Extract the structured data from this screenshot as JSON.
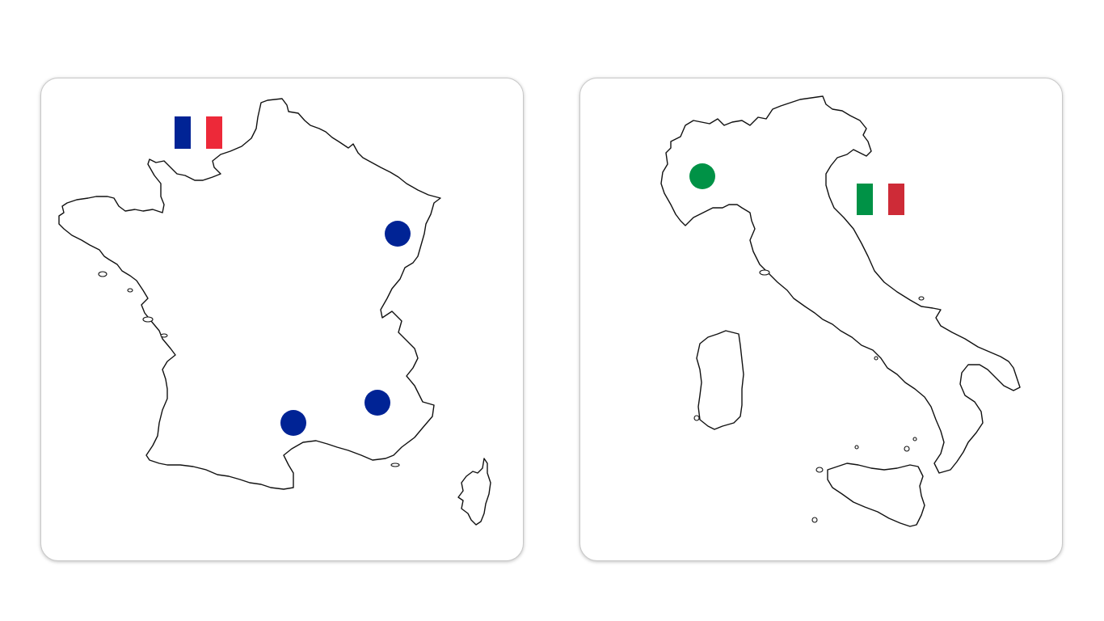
{
  "colors": {
    "france_blue": "#002395",
    "france_white": "#ffffff",
    "france_red": "#ed2939",
    "italy_green": "#009246",
    "italy_white": "#ffffff",
    "italy_red": "#ce2b37",
    "outline": "#111111"
  },
  "cards": [
    {
      "country_shape": "France",
      "flag_icon": "france-flag-icon",
      "marker_count": 3,
      "marker_color": "#002395"
    },
    {
      "country_shape": "Italy",
      "flag_icon": "italy-flag-icon",
      "marker_count": 1,
      "marker_color": "#009246"
    }
  ]
}
